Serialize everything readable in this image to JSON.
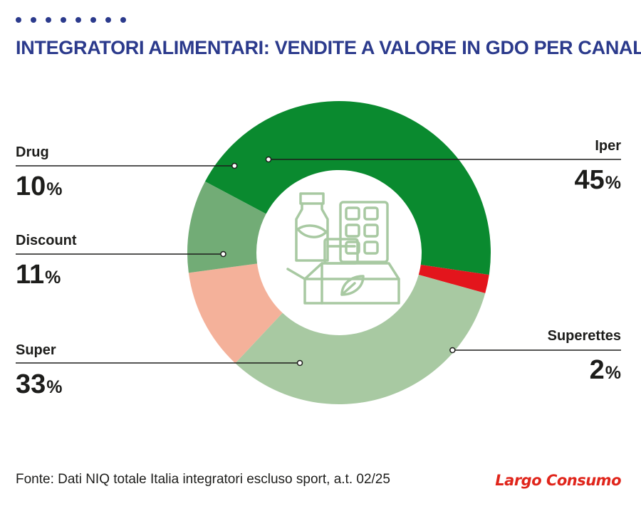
{
  "header": {
    "title": "INTEGRATORI ALIMENTARI: VENDITE A VALORE IN GDO PER CANALE"
  },
  "chart_data": {
    "type": "pie",
    "title": "INTEGRATORI ALIMENTARI: VENDITE A VALORE IN GDO PER CANALE",
    "unit": "%",
    "slices": [
      {
        "label": "Iper",
        "value": 45,
        "color": "#0a8a2f",
        "display": "45"
      },
      {
        "label": "Superettes",
        "value": 2,
        "color": "#e3151c",
        "display": "2"
      },
      {
        "label": "Super",
        "value": 33,
        "color": "#a8c9a2",
        "display": "33"
      },
      {
        "label": "Discount",
        "value": 11,
        "color": "#f4b19a",
        "display": "11"
      },
      {
        "label": "Drug",
        "value": 10,
        "color": "#72ac76",
        "display": "10"
      }
    ],
    "center_icon": "supplements-packaging-icon"
  },
  "footer": {
    "source": "Fonte: Dati NIQ totale Italia integratori escluso sport, a.t. 02/25",
    "brand": "Largo Consumo"
  }
}
